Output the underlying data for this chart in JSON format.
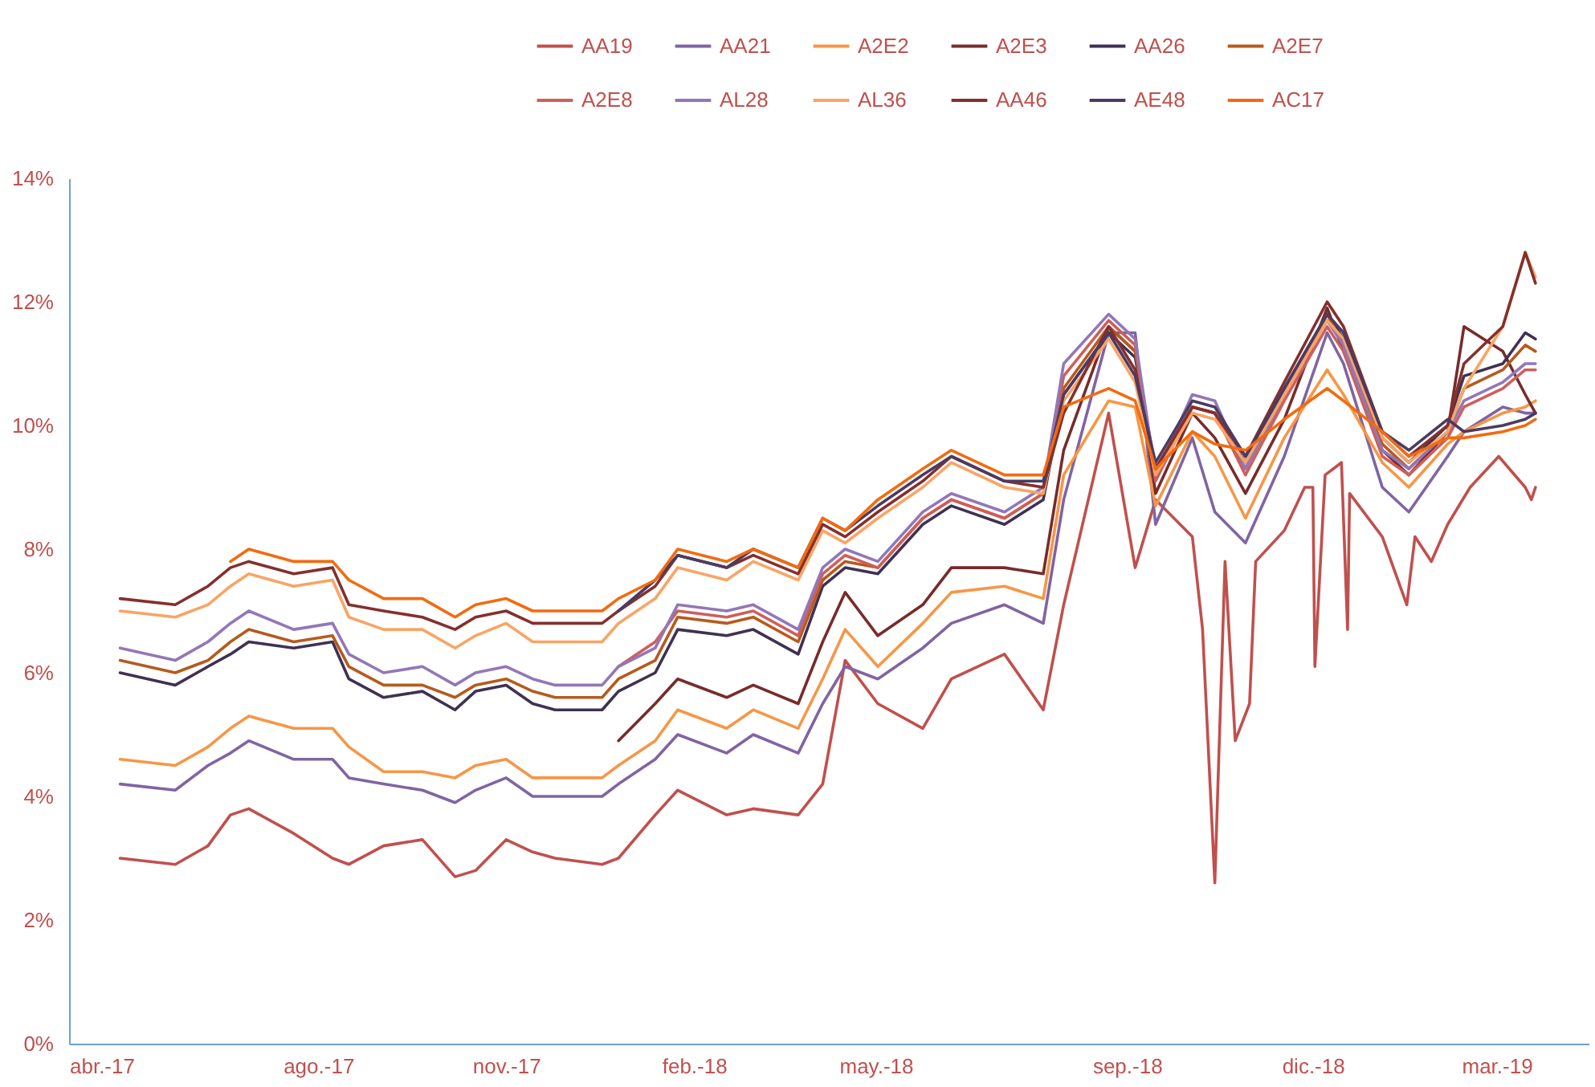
{
  "chart_data": {
    "type": "line",
    "legend": "top",
    "line_style": "solid",
    "xlim": [
      "2017-04-01",
      "2019-04-15"
    ],
    "xticks": [
      {
        "value": "2017-04-01",
        "label": "abr.-17"
      },
      {
        "value": "2017-08-01",
        "label": "ago.-17"
      },
      {
        "value": "2017-11-01",
        "label": "nov.-17"
      },
      {
        "value": "2018-02-01",
        "label": "feb.-18"
      },
      {
        "value": "2018-05-01",
        "label": "may.-18"
      },
      {
        "value": "2018-09-01",
        "label": "sep.-18"
      },
      {
        "value": "2018-12-01",
        "label": "dic.-18"
      },
      {
        "value": "2019-03-01",
        "label": "mar.-19"
      }
    ],
    "ylim": [
      0,
      14
    ],
    "yticks": [
      {
        "value": 0,
        "label": "0%"
      },
      {
        "value": 2,
        "label": "2%"
      },
      {
        "value": 4,
        "label": "4%"
      },
      {
        "value": 6,
        "label": "6%"
      },
      {
        "value": 8,
        "label": "8%"
      },
      {
        "value": 10,
        "label": "10%"
      },
      {
        "value": 12,
        "label": "12%"
      },
      {
        "value": 14,
        "label": "14%"
      }
    ],
    "x": [
      "2017-04-26",
      "2017-05-23",
      "2017-06-08",
      "2017-06-19",
      "2017-06-28",
      "2017-07-20",
      "2017-08-08",
      "2017-08-16",
      "2017-09-02",
      "2017-09-21",
      "2017-10-07",
      "2017-10-17",
      "2017-11-01",
      "2017-11-14",
      "2017-11-25",
      "2017-12-18",
      "2017-12-26",
      "2018-01-13",
      "2018-01-24",
      "2018-02-17",
      "2018-03-02",
      "2018-03-24",
      "2018-04-05",
      "2018-04-16",
      "2018-05-02",
      "2018-05-24",
      "2018-06-07",
      "2018-07-03",
      "2018-07-22",
      "2018-08-01",
      "2018-08-23",
      "2018-09-05",
      "2018-09-15",
      "2018-10-03",
      "2018-10-14",
      "2018-10-29",
      "2018-11-17",
      "2018-12-08",
      "2018-12-16",
      "2019-01-04",
      "2019-01-17",
      "2019-02-05",
      "2019-02-13",
      "2019-03-04",
      "2019-03-15",
      "2019-03-20"
    ],
    "series": [
      {
        "name": "AA19",
        "color": "#c0504d",
        "x": [
          "2017-04-26",
          "2017-05-23",
          "2017-06-08",
          "2017-06-19",
          "2017-06-28",
          "2017-07-20",
          "2017-08-08",
          "2017-08-16",
          "2017-09-02",
          "2017-09-21",
          "2017-10-07",
          "2017-10-17",
          "2017-11-01",
          "2017-11-14",
          "2017-11-25",
          "2017-12-18",
          "2017-12-26",
          "2018-01-13",
          "2018-01-24",
          "2018-02-17",
          "2018-03-02",
          "2018-03-24",
          "2018-04-05",
          "2018-04-16",
          "2018-05-02",
          "2018-05-24",
          "2018-06-07",
          "2018-07-03",
          "2018-07-22",
          "2018-08-01",
          "2018-08-23",
          "2018-09-05",
          "2018-09-15",
          "2018-10-03",
          "2018-10-08",
          "2018-10-14",
          "2018-10-19",
          "2018-10-24",
          "2018-10-31",
          "2018-11-03",
          "2018-11-17",
          "2018-11-27",
          "2018-12-01",
          "2018-12-02",
          "2018-12-07",
          "2018-12-15",
          "2018-12-18",
          "2018-12-19",
          "2019-01-04",
          "2019-01-16",
          "2019-01-20",
          "2019-01-28",
          "2019-02-05",
          "2019-02-16",
          "2019-03-02",
          "2019-03-15",
          "2019-03-18",
          "2019-03-20"
        ],
        "values": [
          3.0,
          2.9,
          3.2,
          3.7,
          3.8,
          3.4,
          3.0,
          2.9,
          3.2,
          3.3,
          2.7,
          2.8,
          3.3,
          3.1,
          3.0,
          2.9,
          3.0,
          3.7,
          4.1,
          3.7,
          3.8,
          3.7,
          4.2,
          6.2,
          5.5,
          5.1,
          5.9,
          6.3,
          5.4,
          7.1,
          10.2,
          7.7,
          8.8,
          8.2,
          6.7,
          2.6,
          7.8,
          4.9,
          5.5,
          7.8,
          8.3,
          9.0,
          9.0,
          6.1,
          9.2,
          9.4,
          6.7,
          8.9,
          8.2,
          7.1,
          8.2,
          7.8,
          8.4,
          9.0,
          9.5,
          9.0,
          8.8,
          9.0
        ]
      },
      {
        "name": "AA21",
        "color": "#8064a2",
        "values": [
          4.2,
          4.1,
          4.5,
          4.7,
          4.9,
          4.6,
          4.6,
          4.3,
          4.2,
          4.1,
          3.9,
          4.1,
          4.3,
          4.0,
          4.0,
          4.0,
          4.2,
          4.6,
          5.0,
          4.7,
          5.0,
          4.7,
          5.5,
          6.1,
          5.9,
          6.4,
          6.8,
          7.1,
          6.8,
          8.8,
          11.5,
          11.5,
          8.4,
          9.8,
          8.6,
          8.1,
          9.5,
          11.5,
          11.0,
          9.0,
          8.6,
          9.5,
          9.9,
          10.3,
          10.2,
          10.2
        ]
      },
      {
        "name": "A2E2",
        "color": "#f79646",
        "values": [
          4.6,
          4.5,
          4.8,
          5.1,
          5.3,
          5.1,
          5.1,
          4.8,
          4.4,
          4.4,
          4.3,
          4.5,
          4.6,
          4.3,
          4.3,
          4.3,
          4.5,
          4.9,
          5.4,
          5.1,
          5.4,
          5.1,
          5.9,
          6.7,
          6.1,
          6.8,
          7.3,
          7.4,
          7.2,
          9.2,
          10.4,
          10.3,
          8.7,
          9.9,
          9.5,
          8.5,
          9.8,
          10.9,
          10.5,
          9.4,
          9.0,
          9.7,
          9.9,
          10.2,
          10.3,
          10.4
        ]
      },
      {
        "name": "A2E3",
        "color": "#772c2a",
        "values": [
          null,
          null,
          null,
          null,
          null,
          null,
          null,
          null,
          null,
          null,
          null,
          null,
          null,
          null,
          null,
          null,
          4.9,
          5.5,
          5.9,
          5.6,
          5.8,
          5.5,
          6.5,
          7.3,
          6.6,
          7.1,
          7.7,
          7.7,
          7.6,
          9.6,
          11.6,
          11.2,
          8.9,
          10.2,
          9.8,
          8.9,
          10.1,
          11.9,
          11.2,
          9.6,
          9.2,
          9.9,
          11.6,
          11.2,
          10.5,
          10.2
        ]
      },
      {
        "name": "AA26",
        "color": "#403152",
        "values": [
          6.0,
          5.8,
          6.1,
          6.3,
          6.5,
          6.4,
          6.5,
          5.9,
          5.6,
          5.7,
          5.4,
          5.7,
          5.8,
          5.5,
          5.4,
          5.4,
          5.7,
          6.0,
          6.7,
          6.6,
          6.7,
          6.3,
          7.4,
          7.7,
          7.6,
          8.4,
          8.7,
          8.4,
          8.8,
          10.5,
          11.5,
          11.1,
          9.3,
          10.3,
          10.2,
          9.4,
          10.6,
          11.8,
          11.4,
          9.8,
          9.4,
          10.0,
          10.8,
          11.0,
          11.5,
          11.4
        ]
      },
      {
        "name": "A2E7",
        "color": "#b65a1e",
        "values": [
          6.2,
          6.0,
          6.2,
          6.5,
          6.7,
          6.5,
          6.6,
          6.1,
          5.8,
          5.8,
          5.6,
          5.8,
          5.9,
          5.7,
          5.6,
          5.6,
          5.9,
          6.2,
          6.9,
          6.8,
          6.9,
          6.5,
          7.5,
          7.8,
          7.7,
          8.5,
          8.8,
          8.5,
          8.9,
          10.6,
          11.6,
          11.2,
          9.2,
          10.3,
          10.2,
          9.3,
          10.5,
          11.8,
          11.3,
          9.7,
          9.3,
          9.9,
          10.6,
          10.9,
          11.3,
          11.2
        ]
      },
      {
        "name": "A2E8",
        "color": "#cd5f5b",
        "values": [
          null,
          null,
          null,
          null,
          null,
          null,
          null,
          null,
          null,
          null,
          null,
          null,
          null,
          null,
          null,
          null,
          6.1,
          6.5,
          7.0,
          6.9,
          7.0,
          6.6,
          7.6,
          7.9,
          7.7,
          8.5,
          8.8,
          8.5,
          8.9,
          10.8,
          11.7,
          11.3,
          9.1,
          10.3,
          10.2,
          9.2,
          10.4,
          11.6,
          11.2,
          9.5,
          9.2,
          9.8,
          10.3,
          10.6,
          10.9,
          10.9
        ]
      },
      {
        "name": "AL28",
        "color": "#9277b8",
        "values": [
          6.4,
          6.2,
          6.5,
          6.8,
          7.0,
          6.7,
          6.8,
          6.3,
          6.0,
          6.1,
          5.8,
          6.0,
          6.1,
          5.9,
          5.8,
          5.8,
          6.1,
          6.4,
          7.1,
          7.0,
          7.1,
          6.7,
          7.7,
          8.0,
          7.8,
          8.6,
          8.9,
          8.6,
          9.0,
          11.0,
          11.8,
          11.4,
          9.2,
          10.5,
          10.4,
          9.3,
          10.5,
          11.7,
          11.3,
          9.6,
          9.3,
          9.9,
          10.4,
          10.7,
          11.0,
          11.0
        ]
      },
      {
        "name": "AL36",
        "color": "#f9a465",
        "values": [
          7.0,
          6.9,
          7.1,
          7.4,
          7.6,
          7.4,
          7.5,
          6.9,
          6.7,
          6.7,
          6.4,
          6.6,
          6.8,
          6.5,
          6.5,
          6.5,
          6.8,
          7.2,
          7.7,
          7.5,
          7.8,
          7.5,
          8.3,
          8.1,
          8.5,
          9.0,
          9.4,
          9.0,
          8.9,
          10.4,
          11.4,
          10.7,
          9.2,
          10.2,
          10.1,
          9.4,
          10.5,
          11.7,
          11.4,
          9.8,
          9.4,
          9.9,
          10.6,
          11.6,
          12.8,
          12.4
        ]
      },
      {
        "name": "AA46",
        "color": "#84302d",
        "values": [
          7.2,
          7.1,
          7.4,
          7.7,
          7.8,
          7.6,
          7.7,
          7.1,
          7.0,
          6.9,
          6.7,
          6.9,
          7.0,
          6.8,
          6.8,
          6.8,
          7.0,
          7.4,
          7.9,
          7.7,
          7.9,
          7.6,
          8.4,
          8.2,
          8.6,
          9.1,
          9.5,
          9.1,
          9.0,
          10.2,
          11.6,
          10.9,
          9.3,
          10.3,
          10.2,
          9.5,
          10.7,
          12.0,
          11.6,
          9.9,
          9.5,
          10.0,
          11.0,
          11.6,
          12.8,
          12.3
        ]
      },
      {
        "name": "AE48",
        "color": "#4b3b63",
        "values": [
          null,
          null,
          null,
          null,
          null,
          null,
          null,
          null,
          null,
          null,
          null,
          null,
          null,
          null,
          null,
          null,
          7.0,
          7.5,
          7.9,
          7.7,
          8.0,
          7.7,
          8.5,
          8.3,
          8.7,
          9.2,
          9.5,
          9.1,
          9.1,
          10.5,
          11.5,
          10.8,
          9.4,
          10.4,
          10.3,
          9.5,
          10.6,
          11.8,
          11.5,
          9.9,
          9.6,
          10.1,
          9.9,
          10.0,
          10.1,
          10.2
        ]
      },
      {
        "name": "AC17",
        "color": "#f26b0f",
        "values": [
          null,
          null,
          null,
          7.8,
          8.0,
          7.8,
          7.8,
          7.5,
          7.2,
          7.2,
          6.9,
          7.1,
          7.2,
          7.0,
          7.0,
          7.0,
          7.2,
          7.5,
          8.0,
          7.8,
          8.0,
          7.7,
          8.5,
          8.3,
          8.8,
          9.3,
          9.6,
          9.2,
          9.2,
          10.3,
          10.6,
          10.4,
          9.3,
          9.9,
          9.7,
          9.6,
          10.1,
          10.6,
          10.4,
          9.9,
          9.5,
          9.8,
          9.8,
          9.9,
          10.0,
          10.1
        ]
      }
    ]
  }
}
